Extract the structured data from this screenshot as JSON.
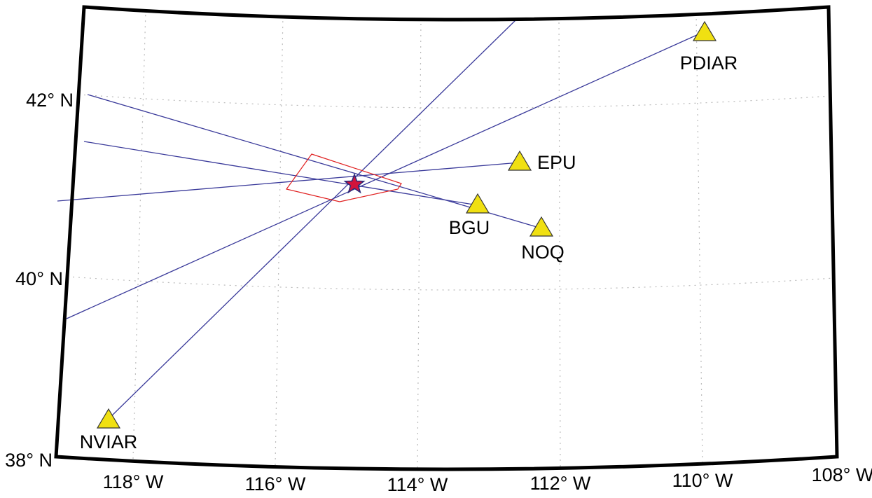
{
  "map": {
    "stations": [
      {
        "name": "PDIAR"
      },
      {
        "name": "EPU"
      },
      {
        "name": "BGU"
      },
      {
        "name": "NOQ"
      },
      {
        "name": "NVIAR"
      }
    ],
    "lat_labels": [
      "42° N",
      "40° N",
      "38° N"
    ],
    "lon_labels": [
      "118° W",
      "116° W",
      "114° W",
      "112° W",
      "110° W",
      "108° W"
    ]
  }
}
